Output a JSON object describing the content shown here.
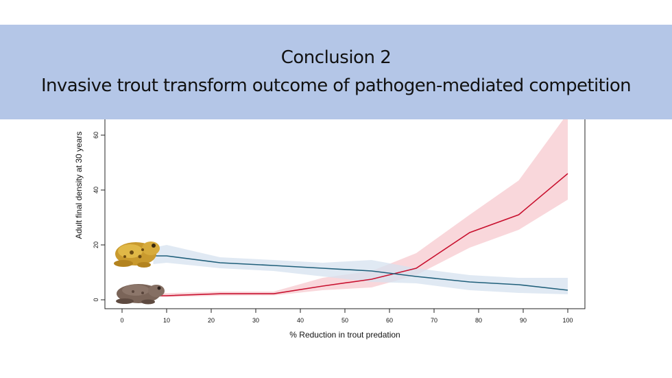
{
  "banner": {
    "title": "Conclusion 2",
    "subtitle": "Invasive trout transform outcome of pathogen-mediated competition"
  },
  "chart_data": {
    "type": "line",
    "xlabel": "% Reduction in trout predation",
    "ylabel": "Adult final density at 30 years",
    "xlim": [
      -4,
      104
    ],
    "ylim": [
      -3,
      70
    ],
    "x_ticks": [
      0,
      10,
      20,
      30,
      40,
      50,
      60,
      70,
      80,
      90,
      100
    ],
    "y_ticks": [
      0,
      20,
      40,
      60
    ],
    "grid": false,
    "series": [
      {
        "color": "#c8102e",
        "band_color": "#f7c9cf",
        "x": [
          7,
          10,
          22,
          34,
          45,
          56,
          66,
          78,
          89,
          100
        ],
        "y": [
          1.5,
          1.5,
          2.2,
          2.2,
          5,
          7.5,
          11.5,
          24.5,
          31,
          46
        ],
        "lower": [
          1.0,
          1.0,
          1.5,
          1.6,
          3.5,
          4.5,
          9,
          19,
          25.5,
          36.5
        ],
        "upper": [
          2.4,
          2.4,
          3.0,
          3.0,
          8,
          10.5,
          17,
          31,
          43.5,
          68
        ]
      },
      {
        "color": "#1f5f7a",
        "band_color": "#d6e1ef",
        "x": [
          7,
          10,
          22,
          34,
          45,
          56,
          66,
          78,
          89,
          100
        ],
        "y": [
          16,
          16,
          13.5,
          12.5,
          11.5,
          10.5,
          8.5,
          6.5,
          5.5,
          3.5
        ],
        "lower": [
          13,
          13.5,
          11.5,
          10.5,
          8.5,
          6.5,
          6.0,
          3.5,
          2.5,
          2.0
        ],
        "upper": [
          19,
          20,
          15.5,
          14.5,
          13.5,
          14.5,
          11.5,
          9.0,
          8.0,
          8.0
        ]
      }
    ]
  },
  "icons": {
    "upper_frog": "yellow-toad-icon",
    "lower_frog": "brown-frog-icon"
  }
}
